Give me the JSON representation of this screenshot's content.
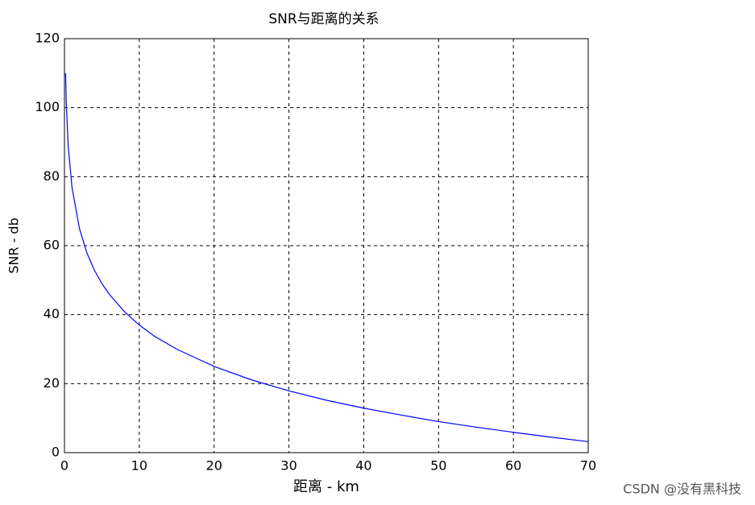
{
  "chart_data": {
    "type": "line",
    "title": "SNR与距离的关系",
    "xlabel": "距离 - km",
    "ylabel": "SNR - db",
    "x": [
      0.15,
      0.25,
      0.5,
      1,
      2,
      3,
      4,
      5,
      6,
      8,
      10,
      12,
      15,
      20,
      25,
      30,
      35,
      40,
      45,
      50,
      55,
      60,
      65,
      70
    ],
    "series": [
      {
        "name": "SNR",
        "color": "#0000ff",
        "values": [
          110.0,
          101.1,
          89.0,
          77.0,
          65.0,
          57.9,
          52.9,
          49.0,
          45.9,
          40.9,
          37.0,
          33.8,
          30.0,
          25.0,
          21.1,
          17.9,
          15.2,
          12.9,
          10.9,
          9.0,
          7.4,
          5.9,
          4.5,
          3.2
        ]
      }
    ],
    "xlim": [
      0,
      70
    ],
    "xticks": [
      0,
      10,
      20,
      30,
      40,
      50,
      60,
      70
    ],
    "ylim": [
      0,
      120
    ],
    "yticks": [
      0,
      20,
      40,
      60,
      80,
      100,
      120
    ],
    "grid": true,
    "watermark": "CSDN @没有黑科技"
  }
}
